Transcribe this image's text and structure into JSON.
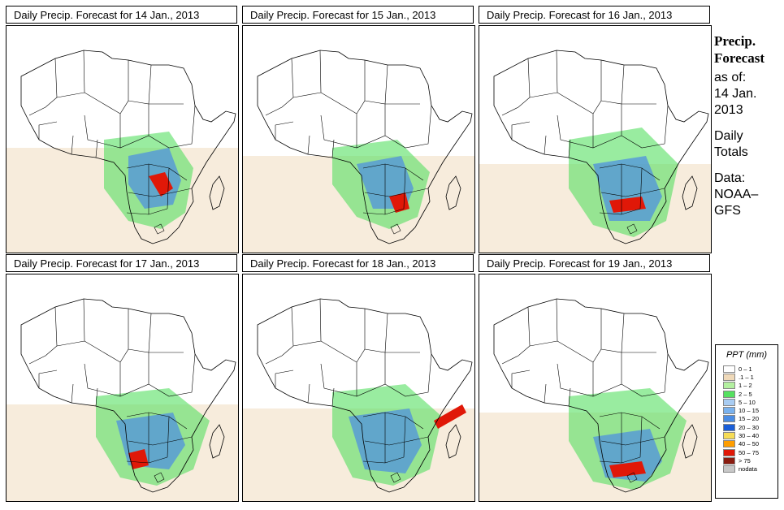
{
  "panels": [
    {
      "title": "Daily Precip. Forecast for  14 Jan., 2013"
    },
    {
      "title": "Daily Precip. Forecast for  15 Jan., 2013"
    },
    {
      "title": "Daily Precip. Forecast for  16 Jan., 2013"
    },
    {
      "title": "Daily Precip. Forecast for  17 Jan., 2013"
    },
    {
      "title": "Daily Precip. Forecast for  18 Jan., 2013"
    },
    {
      "title": "Daily Precip. Forecast for  19 Jan., 2013"
    }
  ],
  "side": {
    "title_line1": "Precip.",
    "title_line2": "Forecast",
    "asof_label": "as of:",
    "date_line1": "14 Jan.",
    "date_line2": "2013",
    "totals_line1": "Daily",
    "totals_line2": "Totals",
    "data_line1": "Data:",
    "data_line2": "NOAA–",
    "data_line3": "GFS"
  },
  "legend": {
    "title": "PPT (mm)",
    "items": [
      {
        "label": "0 – 1",
        "color": "#ffffff"
      },
      {
        "label": ".1 – 1",
        "color": "#efd9b9"
      },
      {
        "label": "1 – 2",
        "color": "#b3f0a0"
      },
      {
        "label": "2 – 5",
        "color": "#55e060"
      },
      {
        "label": "5 – 10",
        "color": "#a8ccf2"
      },
      {
        "label": "10 – 15",
        "color": "#7ab2ee"
      },
      {
        "label": "15 – 20",
        "color": "#4a8ce4"
      },
      {
        "label": "20 – 30",
        "color": "#1a5ed8"
      },
      {
        "label": "30 – 40",
        "color": "#f6dc56"
      },
      {
        "label": "40 – 50",
        "color": "#ff9e00"
      },
      {
        "label": "50 – 75",
        "color": "#e01808"
      },
      {
        "label": "> 75",
        "color": "#8a1c10"
      },
      {
        "label": "nodata",
        "color": "#c8c8c8"
      }
    ]
  }
}
